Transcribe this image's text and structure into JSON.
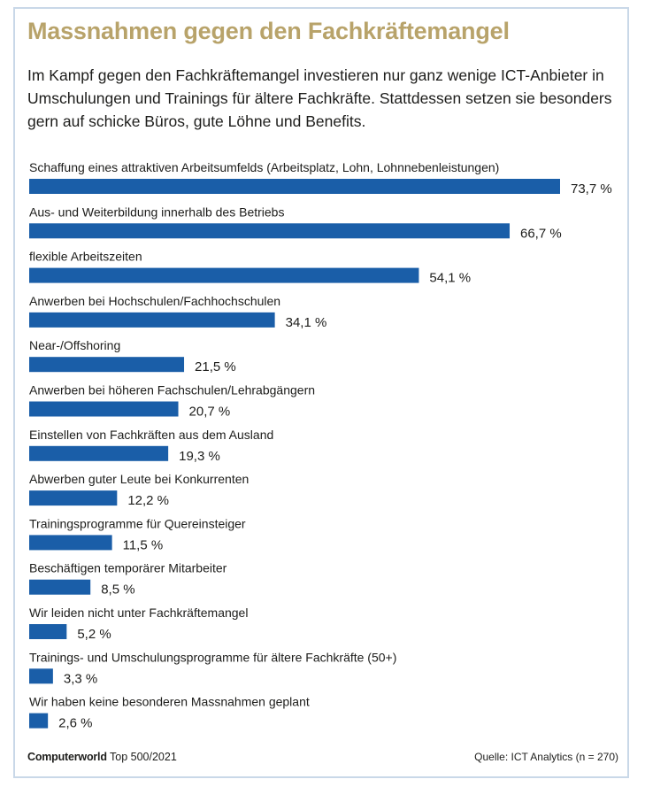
{
  "header": {
    "title": "Massnahmen gegen den Fachkräftemangel",
    "subtitle": "Im Kampf gegen den Fachkräftemangel investieren nur ganz wenige ICT-Anbieter in Umschulungen und Trainings für ältere Fachkräfte. Stattdessen setzen sie besonders gern auf schicke Büros, gute Löhne und Benefits."
  },
  "footer": {
    "brand": "Computerworld",
    "edition": "Top 500/2021",
    "source": "Quelle: ICT Analytics (n = 270)"
  },
  "colors": {
    "bar": "#1a5ea8",
    "title": "#b8a36a",
    "border": "#c9d8e8"
  },
  "chart_data": {
    "type": "bar",
    "orientation": "horizontal",
    "title": "Massnahmen gegen den Fachkräftemangel",
    "xlabel": "",
    "ylabel": "",
    "grid": false,
    "xlim": [
      0,
      73.7
    ],
    "categories": [
      "Schaffung eines attraktiven Arbeitsumfelds (Arbeitsplatz, Lohn, Lohnnebenleistungen)",
      "Aus- und Weiterbildung innerhalb des Betriebs",
      "flexible Arbeitszeiten",
      "Anwerben bei Hochschulen/Fachhochschulen",
      "Near-/Offshoring",
      "Anwerben bei höheren Fachschulen/Lehrabgängern",
      "Einstellen von Fachkräften aus dem Ausland",
      "Abwerben guter Leute bei Konkurrenten",
      "Trainingsprogramme für Quereinsteiger",
      "Beschäftigen temporärer Mitarbeiter",
      "Wir leiden nicht unter Fachkräftemangel",
      "Trainings- und Umschulungsprogramme für ältere Fachkräfte (50+)",
      "Wir haben keine besonderen Massnahmen geplant"
    ],
    "values": [
      73.7,
      66.7,
      54.1,
      34.1,
      21.5,
      20.7,
      19.3,
      12.2,
      11.5,
      8.5,
      5.2,
      3.3,
      2.6
    ],
    "value_labels": [
      "73,7 %",
      "66,7 %",
      "54,1 %",
      "34,1 %",
      "21,5 %",
      "20,7 %",
      "19,3 %",
      "12,2 %",
      "11,5 %",
      "8,5 %",
      "5,2 %",
      "3,3 %",
      "2,6 %"
    ]
  }
}
